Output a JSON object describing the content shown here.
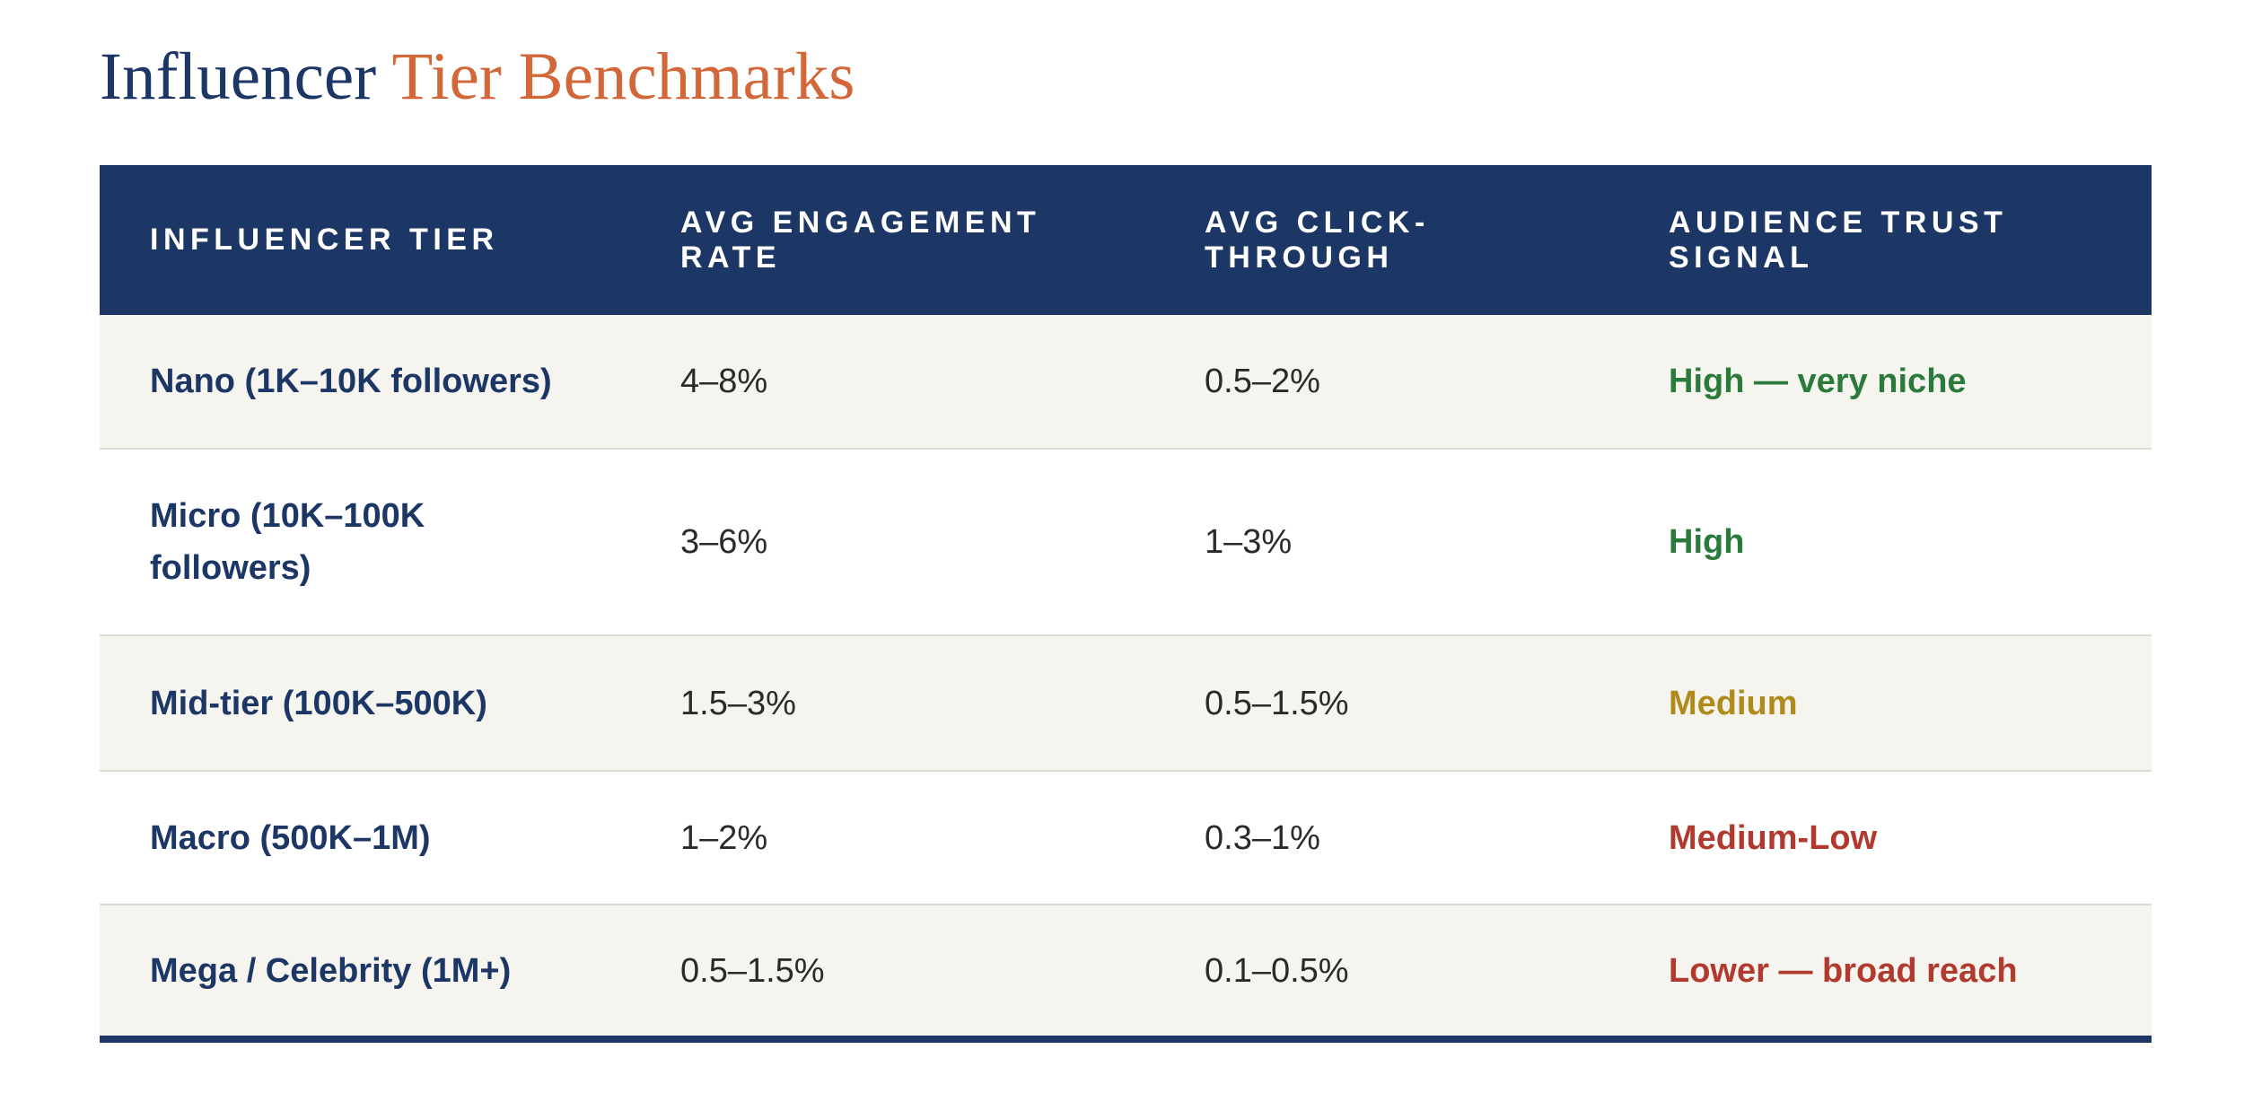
{
  "title": {
    "part1": "Influencer ",
    "part2": "Tier Benchmarks",
    "color_primary": "#1c3666",
    "color_accent": "#d2683a"
  },
  "table": {
    "headers": [
      "INFLUENCER TIER",
      "AVG ENGAGEMENT RATE",
      "AVG CLICK-THROUGH",
      "AUDIENCE TRUST SIGNAL"
    ],
    "rows": [
      {
        "tier": "Nano (1K–10K followers)",
        "engagement": "4–8%",
        "ctr": "0.5–2%",
        "trust": "High — very niche",
        "trust_color": "#2a7a3b"
      },
      {
        "tier": "Micro (10K–100K followers)",
        "engagement": "3–6%",
        "ctr": "1–3%",
        "trust": "High",
        "trust_color": "#2a7a3b"
      },
      {
        "tier": "Mid-tier (100K–500K)",
        "engagement": "1.5–3%",
        "ctr": "0.5–1.5%",
        "trust": "Medium",
        "trust_color": "#b08a1a"
      },
      {
        "tier": "Macro (500K–1M)",
        "engagement": "1–2%",
        "ctr": "0.3–1%",
        "trust": "Medium-Low",
        "trust_color": "#b03a2e"
      },
      {
        "tier": "Mega / Celebrity (1M+)",
        "engagement": "0.5–1.5%",
        "ctr": "0.1–0.5%",
        "trust": "Lower — broad reach",
        "trust_color": "#b03a2e"
      }
    ]
  }
}
